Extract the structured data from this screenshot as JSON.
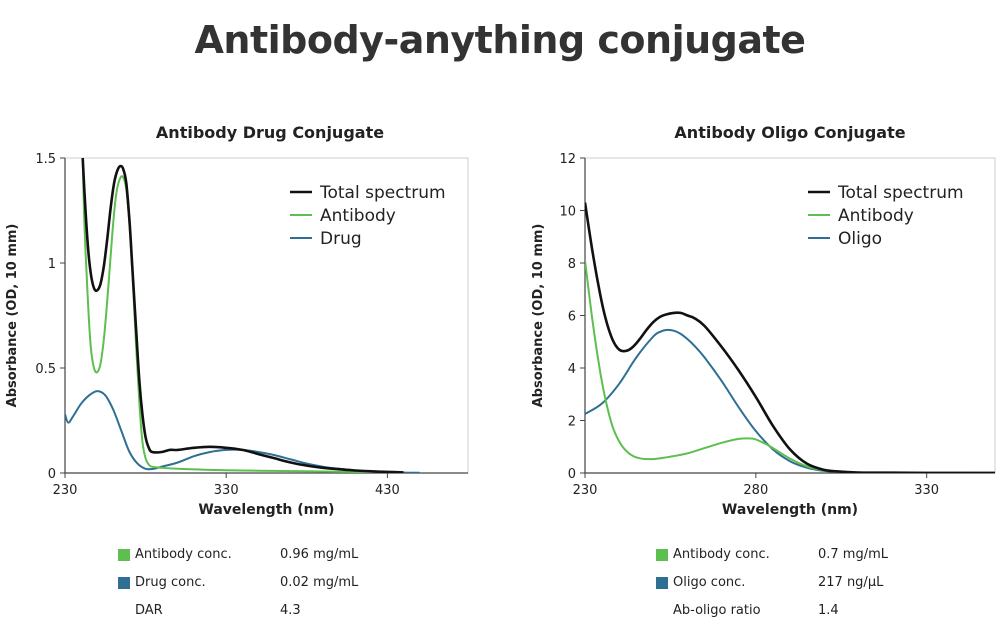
{
  "page": {
    "title": "Antibody-anything conjugate"
  },
  "colors": {
    "total": "#111111",
    "antibody": "#5cbf4f",
    "component": "#2e6f93",
    "frame": "#cccccc"
  },
  "chart_data": [
    {
      "type": "line",
      "title": "Antibody Drug Conjugate",
      "xlabel": "Wavelength (nm)",
      "ylabel": "Absorbance (OD, 10 mm)",
      "xlim": [
        230,
        480
      ],
      "ylim": [
        0,
        1.5
      ],
      "xticks": [
        230,
        330,
        430
      ],
      "yticks": [
        0,
        0.5,
        1,
        1.5
      ],
      "xtick_labels": [
        "230",
        "330",
        "430"
      ],
      "ytick_labels": [
        "0",
        "0.5",
        "1",
        "1.5"
      ],
      "legend_position": "top-right",
      "grid": false,
      "series": [
        {
          "name": "Total spectrum",
          "color": "#111111",
          "x": [
            241,
            242,
            244,
            246,
            248,
            250,
            252,
            254,
            256,
            258,
            260,
            262,
            264,
            266,
            268,
            270,
            272,
            274,
            276,
            278,
            280,
            282,
            284,
            290,
            295,
            300,
            310,
            320,
            330,
            340,
            350,
            360,
            370,
            380,
            390,
            400,
            410,
            420,
            430,
            440
          ],
          "y": [
            1.5,
            1.35,
            1.1,
            0.95,
            0.88,
            0.87,
            0.9,
            0.98,
            1.1,
            1.24,
            1.36,
            1.43,
            1.46,
            1.45,
            1.38,
            1.2,
            0.95,
            0.7,
            0.45,
            0.28,
            0.17,
            0.12,
            0.1,
            0.1,
            0.11,
            0.11,
            0.12,
            0.125,
            0.12,
            0.11,
            0.09,
            0.07,
            0.05,
            0.035,
            0.025,
            0.018,
            0.012,
            0.008,
            0.005,
            0.003
          ]
        },
        {
          "name": "Antibody",
          "color": "#5cbf4f",
          "x": [
            241,
            242,
            244,
            246,
            248,
            250,
            252,
            254,
            256,
            258,
            260,
            262,
            264,
            266,
            268,
            270,
            272,
            274,
            276,
            278,
            280,
            282,
            284,
            290,
            300,
            320,
            340,
            360,
            380,
            400,
            420,
            440
          ],
          "y": [
            1.5,
            1.2,
            0.85,
            0.6,
            0.5,
            0.48,
            0.52,
            0.63,
            0.8,
            1.0,
            1.2,
            1.34,
            1.4,
            1.41,
            1.35,
            1.18,
            0.92,
            0.62,
            0.35,
            0.15,
            0.07,
            0.04,
            0.03,
            0.025,
            0.02,
            0.015,
            0.012,
            0.01,
            0.008,
            0.006,
            0.004,
            0.003
          ]
        },
        {
          "name": "Drug",
          "color": "#2e6f93",
          "x": [
            230,
            232,
            235,
            240,
            245,
            250,
            255,
            260,
            265,
            270,
            275,
            280,
            285,
            290,
            300,
            310,
            320,
            330,
            340,
            350,
            360,
            370,
            380,
            390,
            400,
            410,
            420,
            430,
            440,
            450
          ],
          "y": [
            0.28,
            0.24,
            0.27,
            0.33,
            0.37,
            0.39,
            0.37,
            0.3,
            0.2,
            0.1,
            0.045,
            0.02,
            0.02,
            0.03,
            0.05,
            0.08,
            0.1,
            0.11,
            0.11,
            0.1,
            0.085,
            0.065,
            0.045,
            0.03,
            0.02,
            0.012,
            0.007,
            0.004,
            0.002,
            0.001
          ]
        }
      ]
    },
    {
      "type": "line",
      "title": "Antibody Oligo Conjugate",
      "xlabel": "Wavelength (nm)",
      "ylabel": "Absorbance (OD, 10 mm)",
      "xlim": [
        230,
        350
      ],
      "ylim": [
        0,
        12
      ],
      "xticks": [
        230,
        280,
        330
      ],
      "yticks": [
        0,
        2,
        4,
        6,
        8,
        10,
        12
      ],
      "xtick_labels": [
        "230",
        "280",
        "330"
      ],
      "ytick_labels": [
        "0",
        "2",
        "4",
        "6",
        "8",
        "10",
        "12"
      ],
      "legend_position": "top-right",
      "grid": false,
      "series": [
        {
          "name": "Total spectrum",
          "color": "#111111",
          "x": [
            230,
            232,
            234,
            236,
            238,
            240,
            242,
            244,
            246,
            248,
            250,
            252,
            254,
            256,
            258,
            260,
            262,
            265,
            270,
            275,
            280,
            285,
            290,
            295,
            300,
            305,
            310,
            320,
            330,
            340,
            350
          ],
          "y": [
            10.3,
            8.6,
            7.1,
            5.9,
            5.1,
            4.7,
            4.65,
            4.8,
            5.1,
            5.45,
            5.75,
            5.95,
            6.05,
            6.1,
            6.1,
            6.0,
            5.9,
            5.6,
            4.8,
            3.9,
            2.9,
            1.8,
            0.9,
            0.35,
            0.12,
            0.05,
            0.02,
            0.01,
            0.005,
            0.003,
            0.002
          ]
        },
        {
          "name": "Antibody",
          "color": "#5cbf4f",
          "x": [
            230,
            232,
            234,
            236,
            238,
            240,
            242,
            244,
            246,
            248,
            250,
            252,
            255,
            260,
            265,
            270,
            275,
            278,
            280,
            283,
            285,
            290,
            295,
            300,
            305,
            310,
            320,
            330,
            340,
            350
          ],
          "y": [
            8.1,
            6.0,
            4.2,
            2.8,
            1.8,
            1.2,
            0.85,
            0.65,
            0.56,
            0.53,
            0.53,
            0.56,
            0.62,
            0.75,
            0.95,
            1.15,
            1.3,
            1.32,
            1.28,
            1.1,
            0.95,
            0.55,
            0.25,
            0.1,
            0.04,
            0.02,
            0.01,
            0.005,
            0.003,
            0.002
          ]
        },
        {
          "name": "Oligo",
          "color": "#2e6f93",
          "x": [
            230,
            235,
            240,
            245,
            250,
            252,
            254,
            256,
            258,
            260,
            262,
            265,
            270,
            275,
            280,
            285,
            290,
            295,
            300,
            305,
            310,
            320,
            330,
            340,
            350
          ],
          "y": [
            2.25,
            2.65,
            3.4,
            4.4,
            5.2,
            5.38,
            5.45,
            5.42,
            5.3,
            5.1,
            4.85,
            4.4,
            3.5,
            2.5,
            1.6,
            0.9,
            0.45,
            0.2,
            0.08,
            0.03,
            0.015,
            0.008,
            0.004,
            0.002,
            0.001
          ]
        }
      ]
    }
  ],
  "tables": [
    {
      "rows": [
        {
          "swatch": "antibody",
          "label": "Antibody conc.",
          "value": "0.96 mg/mL"
        },
        {
          "swatch": "component",
          "label": "Drug conc.",
          "value": "0.02 mg/mL"
        },
        {
          "swatch": "",
          "label": "DAR",
          "value": "4.3"
        }
      ]
    },
    {
      "rows": [
        {
          "swatch": "antibody",
          "label": "Antibody conc.",
          "value": "0.7 mg/mL"
        },
        {
          "swatch": "component",
          "label": "Oligo conc.",
          "value": "217 ng/μL"
        },
        {
          "swatch": "",
          "label": "Ab-oligo ratio",
          "value": "1.4"
        }
      ]
    }
  ]
}
